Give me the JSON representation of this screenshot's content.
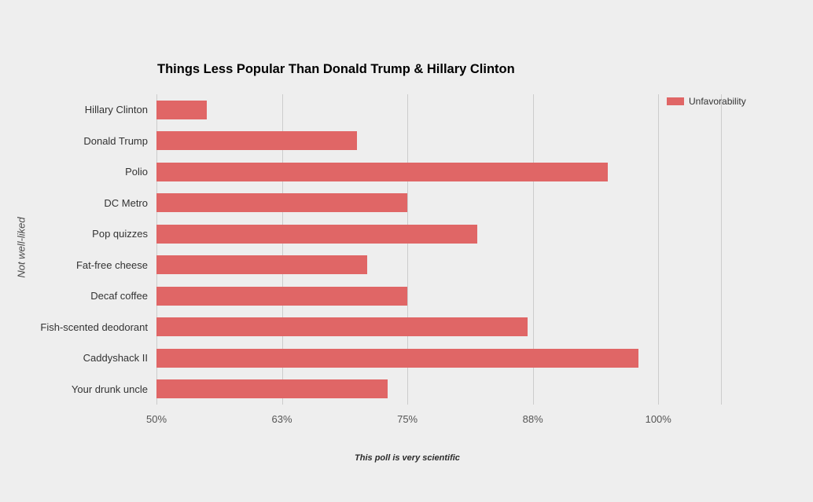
{
  "chart_data": {
    "type": "bar",
    "orientation": "horizontal",
    "title": "Things Less Popular Than Donald Trump & Hillary Clinton",
    "ylabel": "Not well-liked",
    "xlabel": "This poll is very scientific",
    "categories": [
      "Hillary Clinton",
      "Donald Trump",
      "Polio",
      "DC Metro",
      "Pop quizzes",
      "Fat-free cheese",
      "Decaf coffee",
      "Fish-scented deodorant",
      "Caddyshack II",
      "Your drunk uncle"
    ],
    "series": [
      {
        "name": "Unfavorability",
        "values": [
          55,
          70,
          95,
          75,
          82,
          71,
          75,
          87,
          98,
          73
        ]
      }
    ],
    "value_suffix": "%",
    "xlim": [
      50,
      106.25
    ],
    "x_ticks": [
      {
        "value": 50,
        "label": "50%"
      },
      {
        "value": 62.5,
        "label": "63%"
      },
      {
        "value": 75,
        "label": "75%"
      },
      {
        "value": 87.5,
        "label": "88%"
      },
      {
        "value": 100,
        "label": "100%"
      },
      {
        "value": 106.25,
        "label": ""
      }
    ],
    "grid": "vertical",
    "legend_position": "top-right",
    "colors": {
      "bar": "#e06666",
      "gridline": "#cccccc",
      "background": "#eeeeee"
    }
  }
}
